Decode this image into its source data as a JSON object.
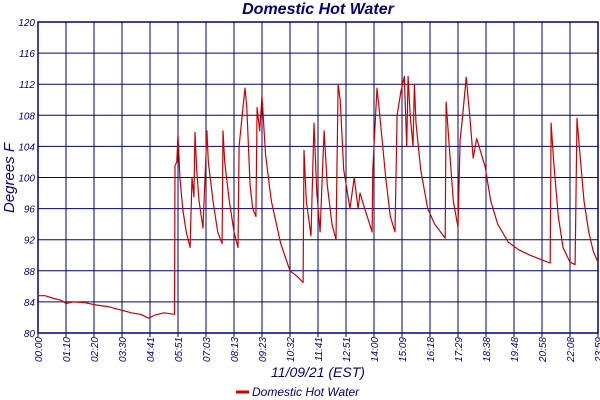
{
  "chart_data": {
    "type": "line",
    "title": "Domestic Hot Water",
    "xlabel": "11/09/21 (EST)",
    "ylabel": "Degrees F",
    "ylim": [
      80,
      120
    ],
    "xlim_hours": [
      0,
      24
    ],
    "y_ticks": [
      80,
      84,
      88,
      92,
      96,
      100,
      104,
      108,
      112,
      116,
      120
    ],
    "x_tick_labels": [
      "00:00",
      "01:10",
      "02:20",
      "03:30",
      "04:41",
      "05:51",
      "07:03",
      "08:13",
      "09:23",
      "10:32",
      "11:41",
      "12:51",
      "14:00",
      "15:09",
      "16:18",
      "17:29",
      "18:38",
      "19:48",
      "20:58",
      "22:08",
      "23:59"
    ],
    "grid": true,
    "legend": {
      "position": "bottom-center",
      "entries": [
        "Domestic Hot Water"
      ]
    },
    "colors": {
      "grid": "#000080",
      "series": "#CC0000",
      "text": "#000080"
    },
    "series": [
      {
        "name": "Domestic Hot Water",
        "points": [
          [
            0,
            84.8
          ],
          [
            0.3,
            84.8
          ],
          [
            0.6,
            84.5
          ],
          [
            1.0,
            84.2
          ],
          [
            1.2,
            83.8
          ],
          [
            1.5,
            84.0
          ],
          [
            2.0,
            83.9
          ],
          [
            2.5,
            83.6
          ],
          [
            3.0,
            83.4
          ],
          [
            3.5,
            83.0
          ],
          [
            4.0,
            82.6
          ],
          [
            4.4,
            82.4
          ],
          [
            4.75,
            81.9
          ],
          [
            5.0,
            82.3
          ],
          [
            5.4,
            82.6
          ],
          [
            5.85,
            82.4
          ],
          [
            5.87,
            101.5
          ],
          [
            5.95,
            102
          ],
          [
            6.0,
            105.5
          ],
          [
            6.08,
            100
          ],
          [
            6.2,
            96
          ],
          [
            6.35,
            93
          ],
          [
            6.52,
            91
          ],
          [
            6.6,
            100
          ],
          [
            6.68,
            97.5
          ],
          [
            6.73,
            105.8
          ],
          [
            6.8,
            101
          ],
          [
            6.9,
            97
          ],
          [
            7.07,
            93.5
          ],
          [
            7.24,
            106
          ],
          [
            7.3,
            102
          ],
          [
            7.5,
            97
          ],
          [
            7.7,
            93
          ],
          [
            7.89,
            91.5
          ],
          [
            7.93,
            106
          ],
          [
            8.0,
            102
          ],
          [
            8.2,
            97
          ],
          [
            8.4,
            93
          ],
          [
            8.57,
            91
          ],
          [
            8.62,
            104
          ],
          [
            8.75,
            108
          ],
          [
            8.87,
            111.5
          ],
          [
            8.95,
            109
          ],
          [
            9.09,
            99
          ],
          [
            9.2,
            96
          ],
          [
            9.34,
            95
          ],
          [
            9.39,
            109
          ],
          [
            9.5,
            106
          ],
          [
            9.6,
            110.5
          ],
          [
            9.75,
            103
          ],
          [
            10.0,
            97
          ],
          [
            10.4,
            91.5
          ],
          [
            10.8,
            88
          ],
          [
            11.1,
            87.3
          ],
          [
            11.36,
            86.5
          ],
          [
            11.4,
            103.5
          ],
          [
            11.5,
            97
          ],
          [
            11.7,
            92.5
          ],
          [
            11.83,
            107
          ],
          [
            11.95,
            98
          ],
          [
            12.09,
            93
          ],
          [
            12.26,
            106
          ],
          [
            12.4,
            99
          ],
          [
            12.6,
            94
          ],
          [
            12.77,
            92
          ],
          [
            12.86,
            112
          ],
          [
            12.95,
            110
          ],
          [
            13.1,
            101
          ],
          [
            13.37,
            96
          ],
          [
            13.55,
            100
          ],
          [
            13.72,
            96
          ],
          [
            13.8,
            98
          ],
          [
            14.0,
            96
          ],
          [
            14.32,
            93
          ],
          [
            14.35,
            101
          ],
          [
            14.53,
            111.5
          ],
          [
            14.65,
            108
          ],
          [
            14.9,
            100
          ],
          [
            15.1,
            95
          ],
          [
            15.3,
            93
          ],
          [
            15.39,
            108
          ],
          [
            15.55,
            111
          ],
          [
            15.7,
            113
          ],
          [
            15.8,
            104
          ],
          [
            15.86,
            113
          ],
          [
            15.95,
            108
          ],
          [
            16.07,
            104
          ],
          [
            16.13,
            112
          ],
          [
            16.2,
            107
          ],
          [
            16.4,
            101
          ],
          [
            16.7,
            96
          ],
          [
            17.0,
            94
          ],
          [
            17.45,
            92.2
          ],
          [
            17.49,
            109.7
          ],
          [
            17.6,
            105
          ],
          [
            17.8,
            97
          ],
          [
            18.0,
            93.6
          ],
          [
            18.09,
            104.8
          ],
          [
            18.2,
            108
          ],
          [
            18.35,
            112.9
          ],
          [
            18.5,
            108
          ],
          [
            18.65,
            102.5
          ],
          [
            18.8,
            105
          ],
          [
            19.16,
            101.4
          ],
          [
            19.4,
            97
          ],
          [
            19.7,
            94
          ],
          [
            20.15,
            91.7
          ],
          [
            20.6,
            90.7
          ],
          [
            21.1,
            90
          ],
          [
            21.6,
            89.4
          ],
          [
            21.95,
            89
          ],
          [
            21.99,
            107
          ],
          [
            22.1,
            102
          ],
          [
            22.3,
            95
          ],
          [
            22.5,
            91
          ],
          [
            22.8,
            89.1
          ],
          [
            23.02,
            88.8
          ],
          [
            23.1,
            107.6
          ],
          [
            23.2,
            104
          ],
          [
            23.4,
            97
          ],
          [
            23.6,
            93
          ],
          [
            23.8,
            90.5
          ],
          [
            24.0,
            89.1
          ]
        ]
      }
    ]
  }
}
